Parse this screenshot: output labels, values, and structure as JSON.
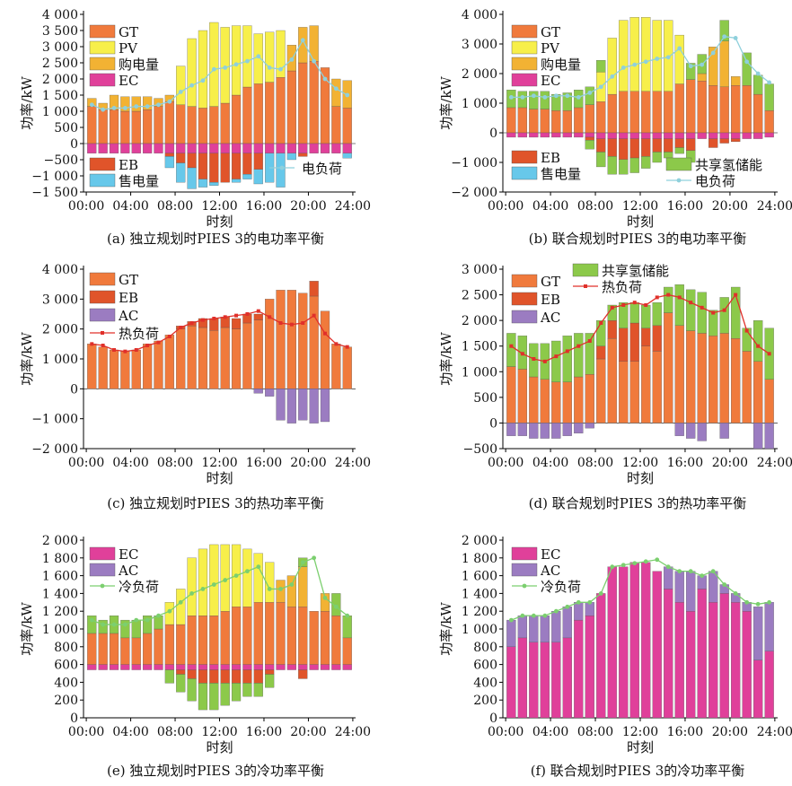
{
  "colors": {
    "GT": "#f07a3c",
    "PV": "#f7ef4a",
    "buy": "#f2b233",
    "EC": "#e0409a",
    "EB": "#e0542a",
    "sell": "#67c8ea",
    "H2": "#8cc94a",
    "AC": "#9b7cc1",
    "elec_load": "#8fd0dc",
    "heat_load": "#e0302a",
    "cool_load": "#7ccf6f"
  },
  "chart_data": [
    {
      "id": "a",
      "type": "bar",
      "caption": "(a) 独立规划时PIES 3的电功率平衡",
      "xlabel": "时刻",
      "ylabel": "功率/kW",
      "xticks": [
        "00:00",
        "04:00",
        "08:00",
        "12:00",
        "16:00",
        "20:00",
        "24:00"
      ],
      "yticks": [
        "4 000",
        "3 500",
        "3 000",
        "2 500",
        "2 000",
        "1 500",
        "1 000",
        "500",
        "0",
        "−500",
        "−1 000",
        "−1 500"
      ],
      "ylim": [
        -1500,
        4000
      ],
      "legend_labels": {
        "GT": "GT",
        "PV": "PV",
        "buy": "购电量",
        "EC": "EC",
        "EB": "EB",
        "sell": "售电量",
        "load": "电负荷"
      },
      "series": {
        "GT": [
          1150,
          1050,
          1050,
          1000,
          1000,
          1050,
          1150,
          1300,
          1200,
          1150,
          1100,
          1150,
          1250,
          1500,
          1750,
          1850,
          1900,
          2050,
          2250,
          2500,
          2550,
          2350,
          1150,
          1100
        ],
        "PV": [
          0,
          0,
          0,
          0,
          0,
          0,
          0,
          0,
          1200,
          2100,
          2400,
          2600,
          2350,
          2150,
          1900,
          1550,
          1550,
          1450,
          0,
          0,
          0,
          0,
          0,
          0
        ],
        "buy": [
          250,
          200,
          450,
          450,
          450,
          400,
          250,
          200,
          0,
          0,
          0,
          0,
          0,
          0,
          0,
          0,
          0,
          0,
          800,
          1100,
          1100,
          0,
          850,
          850
        ],
        "EC": [
          -300,
          -300,
          -300,
          -300,
          -300,
          -300,
          -300,
          -300,
          -300,
          -300,
          -300,
          -300,
          -300,
          -300,
          -300,
          -300,
          -300,
          -300,
          -300,
          -300,
          -300,
          -300,
          -300,
          -300
        ],
        "EB": [
          0,
          0,
          0,
          0,
          0,
          0,
          0,
          -100,
          -300,
          -450,
          -800,
          -900,
          -900,
          -800,
          -650,
          -500,
          0,
          0,
          0,
          -100,
          0,
          0,
          0,
          0
        ],
        "sell": [
          0,
          0,
          0,
          0,
          0,
          0,
          0,
          -350,
          -600,
          -650,
          -250,
          -100,
          0,
          -100,
          -150,
          -450,
          -900,
          -1050,
          -200,
          0,
          0,
          0,
          0,
          -150
        ],
        "load": [
          1200,
          1050,
          1100,
          1100,
          1150,
          1150,
          1200,
          1300,
          1600,
          1800,
          1950,
          2300,
          2350,
          2450,
          2550,
          2700,
          2350,
          2300,
          2600,
          3200,
          2550,
          2000,
          1700,
          1500
        ]
      }
    },
    {
      "id": "b",
      "type": "bar",
      "caption": "(b) 联合规划时PIES 3的电功率平衡",
      "xlabel": "时刻",
      "ylabel": "功率/kW",
      "xticks": [
        "00:00",
        "04:00",
        "08:00",
        "12:00",
        "16:00",
        "20:00",
        "24:00"
      ],
      "yticks": [
        "4 000",
        "3 000",
        "2 000",
        "1 000",
        "0",
        "−1 000",
        "−2 000"
      ],
      "ylim": [
        -2000,
        4000
      ],
      "legend_labels": {
        "GT": "GT",
        "PV": "PV",
        "buy": "购电量",
        "EC": "EC",
        "EB": "EB",
        "sell": "售电量",
        "H2": "共享氢储能",
        "load": "电负荷"
      },
      "series": {
        "GT": [
          850,
          850,
          800,
          800,
          750,
          750,
          850,
          950,
          1050,
          1300,
          1400,
          1400,
          1400,
          1400,
          1400,
          1650,
          1800,
          1750,
          1600,
          1550,
          1600,
          1600,
          1300,
          750
        ],
        "PV": [
          0,
          0,
          0,
          0,
          0,
          0,
          0,
          0,
          1000,
          1900,
          2400,
          2500,
          2500,
          2400,
          2400,
          1650,
          0,
          0,
          0,
          0,
          0,
          0,
          0,
          0
        ],
        "buy": [
          0,
          0,
          0,
          0,
          0,
          0,
          0,
          0,
          0,
          0,
          0,
          0,
          0,
          0,
          0,
          0,
          0,
          250,
          1300,
          1550,
          300,
          0,
          0,
          0
        ],
        "H2": [
          600,
          550,
          600,
          600,
          550,
          600,
          600,
          600,
          400,
          0,
          0,
          0,
          0,
          0,
          0,
          0,
          550,
          650,
          0,
          700,
          0,
          1100,
          650,
          900
        ],
        "EC": [
          -150,
          -150,
          -150,
          -150,
          -150,
          -150,
          -150,
          -150,
          -200,
          -200,
          -200,
          -200,
          -200,
          -200,
          -200,
          -200,
          -200,
          -200,
          -200,
          -200,
          -200,
          -200,
          -200,
          -150
        ],
        "EB": [
          0,
          0,
          0,
          0,
          0,
          0,
          0,
          -100,
          -450,
          -600,
          -700,
          -650,
          -600,
          -450,
          -450,
          -300,
          -400,
          0,
          -300,
          -150,
          -100,
          0,
          0,
          0
        ],
        "H2neg": [
          0,
          0,
          0,
          0,
          0,
          0,
          0,
          -300,
          -500,
          -600,
          -500,
          -500,
          -400,
          -350,
          -200,
          -200,
          -400,
          0,
          0,
          0,
          0,
          0,
          0,
          0
        ],
        "load": [
          1200,
          1200,
          1250,
          1200,
          1250,
          1250,
          1200,
          1350,
          1550,
          1900,
          2200,
          2300,
          2400,
          2500,
          2550,
          2850,
          2250,
          2300,
          2700,
          3250,
          3200,
          2400,
          2000,
          1700
        ]
      }
    },
    {
      "id": "c",
      "type": "bar",
      "caption": "(c) 独立规划时PIES 3的热功率平衡",
      "xlabel": "时刻",
      "ylabel": "功率/kW",
      "xticks": [
        "00:00",
        "04:00",
        "08:00",
        "12:00",
        "16:00",
        "20:00",
        "24:00"
      ],
      "yticks": [
        "4 000",
        "3 000",
        "2 000",
        "1 000",
        "0",
        "−1 000",
        "−2 000"
      ],
      "ylim": [
        -2000,
        4000
      ],
      "legend_labels": {
        "GT": "GT",
        "EB": "EB",
        "AC": "AC",
        "load": "热负荷"
      },
      "series": {
        "GT": [
          1500,
          1400,
          1300,
          1250,
          1300,
          1500,
          1600,
          1800,
          2000,
          2100,
          2050,
          1950,
          2050,
          2000,
          2200,
          2300,
          3000,
          3300,
          3300,
          3200,
          3100,
          2600,
          1500,
          1400
        ],
        "EB": [
          0,
          0,
          0,
          0,
          0,
          0,
          0,
          0,
          100,
          150,
          300,
          400,
          350,
          350,
          300,
          200,
          0,
          0,
          0,
          0,
          500,
          0,
          0,
          0
        ],
        "AC": [
          0,
          0,
          0,
          0,
          0,
          0,
          0,
          0,
          0,
          0,
          0,
          0,
          0,
          0,
          0,
          -150,
          -250,
          -1050,
          -1150,
          -1050,
          -1150,
          -1100,
          0,
          0
        ],
        "load": [
          1500,
          1450,
          1300,
          1250,
          1300,
          1450,
          1550,
          1750,
          2050,
          2200,
          2300,
          2350,
          2400,
          2450,
          2500,
          2600,
          2400,
          2200,
          2150,
          2200,
          2450,
          1850,
          1500,
          1400
        ]
      }
    },
    {
      "id": "d",
      "type": "bar",
      "caption": "(d) 联合规划时PIES 3的热功率平衡",
      "xlabel": "时刻",
      "ylabel": "功率/kW",
      "xticks": [
        "00:00",
        "04:00",
        "08:00",
        "12:00",
        "16:00",
        "20:00",
        "24:00"
      ],
      "yticks": [
        "3 000",
        "2 500",
        "2 000",
        "1 500",
        "1 000",
        "500",
        "0",
        "−500"
      ],
      "ylim": [
        -500,
        3000
      ],
      "legend_labels": {
        "GT": "GT",
        "EB": "EB",
        "AC": "AC",
        "H2": "共享氢储能",
        "load": "热负荷"
      },
      "series": {
        "GT": [
          1100,
          1050,
          900,
          850,
          800,
          800,
          900,
          950,
          1250,
          1650,
          1200,
          1200,
          1500,
          1400,
          2150,
          1900,
          1800,
          1750,
          1700,
          1750,
          1650,
          1400,
          1200,
          850
        ],
        "EB": [
          0,
          0,
          0,
          0,
          0,
          0,
          0,
          0,
          250,
          350,
          650,
          750,
          350,
          500,
          0,
          0,
          0,
          0,
          0,
          0,
          0,
          0,
          0,
          0
        ],
        "H2": [
          650,
          650,
          650,
          700,
          800,
          900,
          850,
          800,
          500,
          300,
          500,
          400,
          450,
          450,
          500,
          800,
          800,
          800,
          500,
          700,
          1000,
          450,
          800,
          1000
        ],
        "AC": [
          -250,
          -250,
          -300,
          -300,
          -300,
          -250,
          -200,
          -100,
          0,
          0,
          0,
          0,
          0,
          0,
          0,
          -250,
          -300,
          -350,
          0,
          -300,
          0,
          0,
          -500,
          -500
        ],
        "load": [
          1500,
          1350,
          1250,
          1200,
          1300,
          1400,
          1500,
          1600,
          1950,
          2250,
          2300,
          2350,
          2300,
          2450,
          2500,
          2450,
          2350,
          2250,
          2150,
          2200,
          2500,
          1800,
          1500,
          1350
        ]
      }
    },
    {
      "id": "e",
      "type": "bar",
      "caption": "(e) 独立规划时PIES 3的冷功率平衡",
      "xlabel": "时刻",
      "ylabel": "功率/kW",
      "xticks": [
        "00:00",
        "04:00",
        "08:00",
        "12:00",
        "16:00",
        "20:00",
        "24:00"
      ],
      "yticks": [
        "2 000",
        "1 800",
        "1 600",
        "1 400",
        "1 200",
        "1 000",
        "800",
        "600",
        "400",
        "200",
        "0"
      ],
      "ylim": [
        0,
        2000
      ],
      "legend_labels": {
        "EC": "EC",
        "AC": "AC",
        "load": "冷负荷"
      },
      "series": {
        "seg": [
          {
            "color": "GT",
            "values": [
              950,
              950,
              950,
              900,
              900,
              950,
              1000,
              1050,
              1050,
              1150,
              1150,
              1150,
              1200,
              1250,
              1250,
              1300,
              1300,
              1300,
              1250,
              1250,
              1200,
              1200,
              1150,
              900
            ]
          },
          {
            "color": "PV",
            "values": [
              0,
              0,
              0,
              0,
              0,
              0,
              0,
              250,
              400,
              650,
              750,
              800,
              750,
              700,
              650,
              550,
              450,
              0,
              0,
              0,
              0,
              0,
              0,
              0
            ]
          },
          {
            "color": "buy",
            "values": [
              0,
              0,
              0,
              0,
              0,
              0,
              0,
              0,
              0,
              0,
              0,
              0,
              0,
              0,
              0,
              0,
              0,
              250,
              350,
              450,
              0,
              200,
              0,
              0
            ]
          },
          {
            "color": "H2",
            "values": [
              200,
              150,
              200,
              200,
              200,
              200,
              150,
              0,
              0,
              0,
              0,
              0,
              0,
              0,
              0,
              0,
              0,
              0,
              0,
              100,
              0,
              0,
              250,
              250
            ]
          },
          {
            "color": "EC",
            "values": [
              600,
              600,
              600,
              600,
              600,
              600,
              600,
              600,
              600,
              600,
              600,
              600,
              600,
              600,
              600,
              600,
              600,
              600,
              600,
              600,
              600,
              600,
              600,
              600
            ]
          }
        ],
        "neg": [
          {
            "color": "EC",
            "values": [
              0,
              0,
              0,
              0,
              0,
              0,
              0,
              0,
              0,
              0,
              0,
              0,
              0,
              0,
              0,
              0,
              0,
              0,
              0,
              0,
              0,
              0,
              0,
              0
            ]
          },
          {
            "color": "EB",
            "values": [
              0,
              0,
              0,
              0,
              0,
              0,
              0,
              0,
              50,
              100,
              150,
              150,
              150,
              150,
              150,
              150,
              50,
              0,
              0,
              100,
              0,
              0,
              0,
              0
            ]
          },
          {
            "color": "H2",
            "values": [
              0,
              0,
              0,
              0,
              0,
              0,
              0,
              150,
              200,
              250,
              300,
              300,
              250,
              200,
              150,
              150,
              150,
              0,
              0,
              0,
              0,
              0,
              0,
              0
            ]
          }
        ],
        "load": [
          1100,
          1050,
          1050,
          1050,
          1100,
          1100,
          1150,
          1200,
          1300,
          1400,
          1450,
          1500,
          1550,
          1600,
          1650,
          1700,
          1450,
          1450,
          1500,
          1750,
          1800,
          1350,
          1250,
          1150
        ]
      }
    },
    {
      "id": "f",
      "type": "bar",
      "caption": "(f) 联合规划时PIES 3的冷功率平衡",
      "xlabel": "时刻",
      "ylabel": "功率/kW",
      "xticks": [
        "00:00",
        "04:00",
        "08:00",
        "12:00",
        "16:00",
        "20:00",
        "24:00"
      ],
      "yticks": [
        "2 000",
        "1 800",
        "1 600",
        "1 400",
        "1 200",
        "1 000",
        "800",
        "600",
        "400",
        "200",
        "0"
      ],
      "ylim": [
        0,
        2000
      ],
      "legend_labels": {
        "EC": "EC",
        "AC": "AC",
        "load": "冷负荷"
      },
      "series": {
        "EC": [
          800,
          900,
          850,
          850,
          850,
          900,
          1100,
          1150,
          1400,
          1700,
          1700,
          1750,
          1750,
          1650,
          1450,
          1300,
          1200,
          1450,
          1300,
          1400,
          1300,
          1200,
          650,
          750
        ],
        "AC": [
          300,
          250,
          300,
          300,
          350,
          350,
          200,
          150,
          0,
          0,
          0,
          0,
          0,
          0,
          250,
          350,
          450,
          150,
          350,
          100,
          100,
          100,
          600,
          550
        ],
        "load": [
          1100,
          1150,
          1150,
          1150,
          1200,
          1250,
          1300,
          1300,
          1400,
          1700,
          1720,
          1740,
          1760,
          1780,
          1700,
          1650,
          1650,
          1600,
          1650,
          1500,
          1400,
          1300,
          1280,
          1300
        ]
      }
    }
  ]
}
